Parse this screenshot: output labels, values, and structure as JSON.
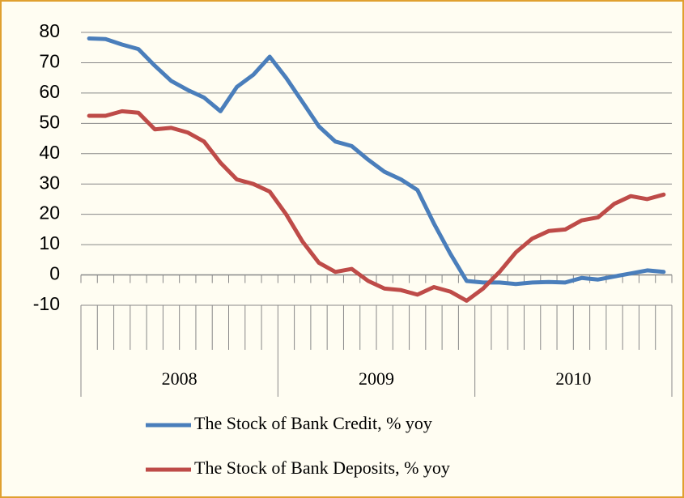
{
  "chart_data": {
    "type": "line",
    "categories": [
      null,
      null,
      null,
      null,
      null,
      null,
      null,
      null,
      null,
      null,
      null,
      null,
      null,
      null,
      null,
      null,
      null,
      null,
      null,
      null,
      null,
      null,
      null,
      null,
      null,
      null,
      null,
      null,
      null,
      null,
      null,
      null,
      null,
      null,
      null,
      null
    ],
    "category_groups": [
      "2008",
      "2009",
      "2010"
    ],
    "series": [
      {
        "name": "The Stock of Bank Credit, % yoy",
        "color": "#4a7ebb",
        "values": [
          78,
          77.8,
          76,
          74.5,
          69,
          64,
          61,
          58.5,
          54,
          62,
          66,
          72,
          65,
          57,
          49,
          44,
          42.5,
          38,
          34,
          31.5,
          28,
          17,
          7,
          -2,
          -2.5,
          -2.5,
          -3,
          -2.5,
          -2.3,
          -2.5,
          -1,
          -1.5,
          -0.5,
          0.5,
          1.5,
          1
        ]
      },
      {
        "name": "The Stock of Bank Deposits, % yoy",
        "color": "#be4b48",
        "values": [
          52.5,
          52.5,
          54,
          53.5,
          48,
          48.5,
          47,
          44,
          37,
          31.5,
          30,
          27.5,
          20,
          11,
          4,
          1,
          2,
          -2,
          -4.5,
          -5,
          -6.5,
          -4,
          -5.5,
          -8.5,
          -4.5,
          1,
          7.5,
          12,
          14.5,
          15,
          18,
          19,
          23.5,
          26,
          25,
          26.5
        ]
      }
    ],
    "ylim": [
      -10,
      80
    ],
    "yticks": [
      -10,
      0,
      10,
      20,
      30,
      40,
      50,
      60,
      70,
      80
    ],
    "grid": true,
    "legend": "bottom"
  }
}
